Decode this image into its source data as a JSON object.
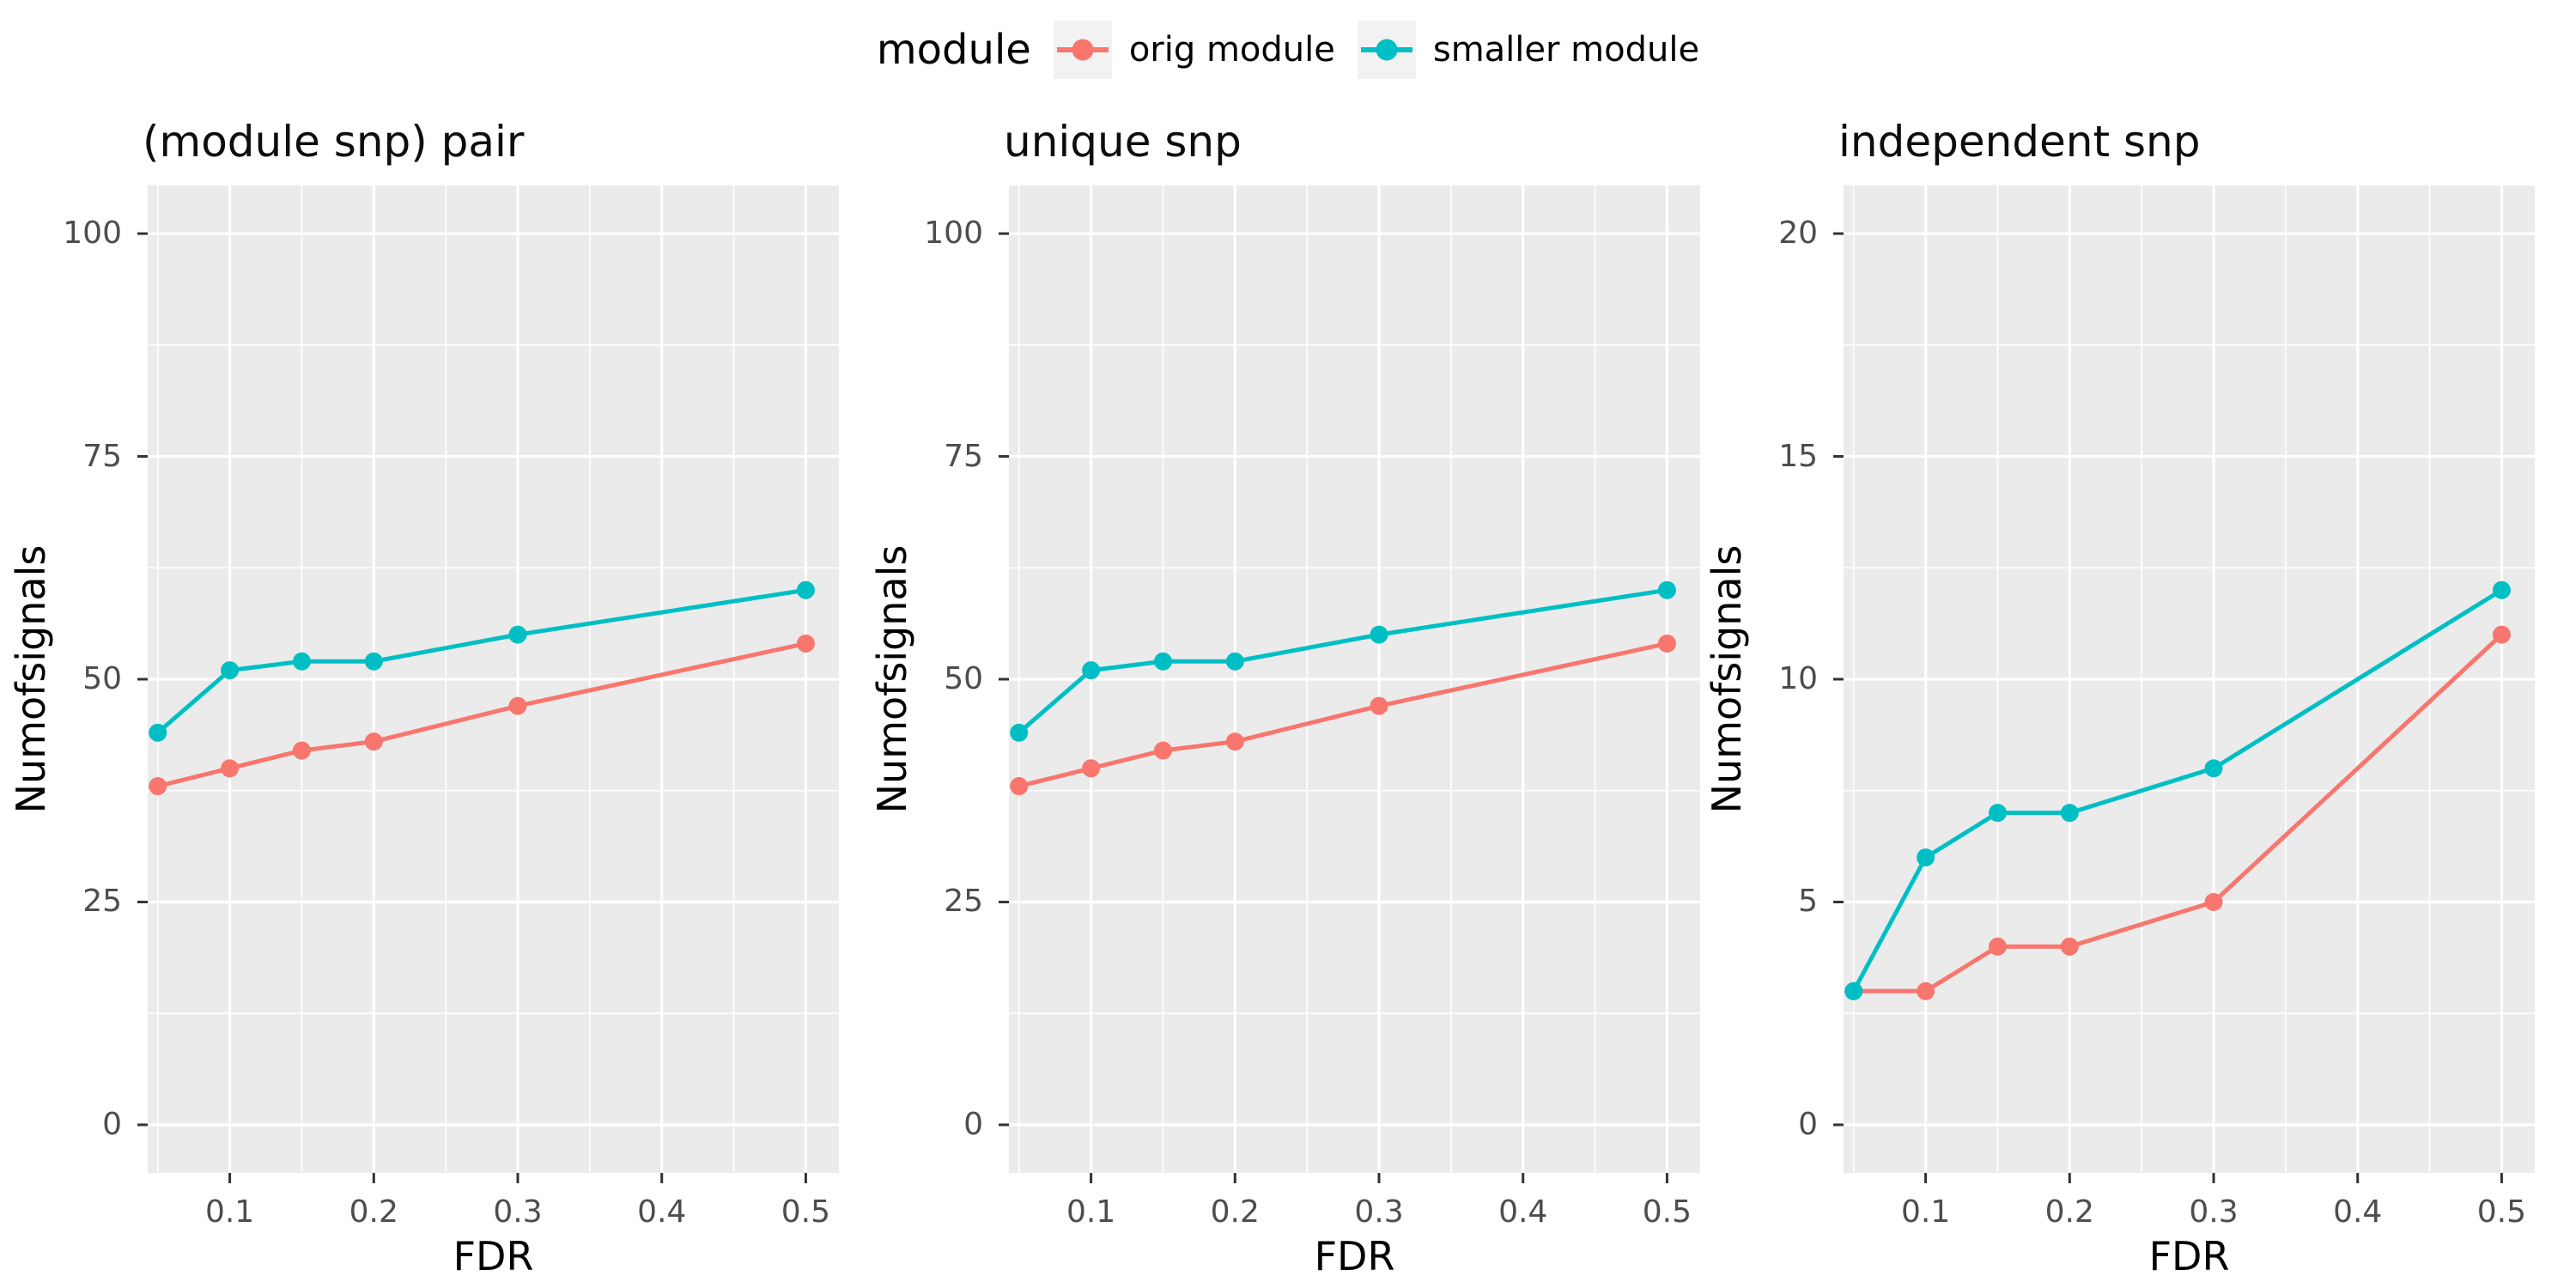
{
  "legend": {
    "title": "module",
    "position": "top",
    "items": [
      {
        "label": "orig module",
        "color": "#F8766D"
      },
      {
        "label": "smaller module",
        "color": "#00BFC4"
      }
    ]
  },
  "colors": {
    "panel_bg": "#EBEBEB",
    "grid": "#FFFFFF",
    "tick_mark": "#333333",
    "tick_text": "#4D4D4D",
    "axis_title": "#000000",
    "legend_key_bg": "#F2F2F2",
    "orig_module": "#F8766D",
    "smaller_module": "#00BFC4"
  },
  "chart_data": [
    {
      "type": "line",
      "title": "(module snp) pair",
      "xlabel": "FDR",
      "ylabel": "Numofsignals",
      "grid": true,
      "legend_position": "top",
      "x": [
        0.05,
        0.1,
        0.15,
        0.2,
        0.3,
        0.5
      ],
      "series": [
        {
          "name": "orig module",
          "color": "#F8766D",
          "values": [
            38,
            40,
            42,
            43,
            47,
            54
          ]
        },
        {
          "name": "smaller module",
          "color": "#00BFC4",
          "values": [
            44,
            51,
            52,
            52,
            55,
            60
          ]
        }
      ],
      "xlim": [
        0.043,
        0.523
      ],
      "ylim": [
        -5.4,
        105.4
      ],
      "x_major_ticks": [
        0.1,
        0.2,
        0.3,
        0.4,
        0.5
      ],
      "x_tick_labels": [
        "0.1",
        "0.2",
        "0.3",
        "0.4",
        "0.5"
      ],
      "x_minor_gridlines": [
        0.05,
        0.15,
        0.25,
        0.35,
        0.45
      ],
      "y_major_ticks": [
        0,
        25,
        50,
        75,
        100
      ],
      "y_tick_labels": [
        "0",
        "25",
        "50",
        "75",
        "100"
      ],
      "y_minor_gridlines": [
        12.5,
        37.5,
        62.5,
        87.5
      ]
    },
    {
      "type": "line",
      "title": "unique snp",
      "xlabel": "FDR",
      "ylabel": "Numofsignals",
      "grid": true,
      "legend_position": "top",
      "x": [
        0.05,
        0.1,
        0.15,
        0.2,
        0.3,
        0.5
      ],
      "series": [
        {
          "name": "orig module",
          "color": "#F8766D",
          "values": [
            38,
            40,
            42,
            43,
            47,
            54
          ]
        },
        {
          "name": "smaller module",
          "color": "#00BFC4",
          "values": [
            44,
            51,
            52,
            52,
            55,
            60
          ]
        }
      ],
      "xlim": [
        0.043,
        0.523
      ],
      "ylim": [
        -5.4,
        105.4
      ],
      "x_major_ticks": [
        0.1,
        0.2,
        0.3,
        0.4,
        0.5
      ],
      "x_tick_labels": [
        "0.1",
        "0.2",
        "0.3",
        "0.4",
        "0.5"
      ],
      "x_minor_gridlines": [
        0.05,
        0.15,
        0.25,
        0.35,
        0.45
      ],
      "y_major_ticks": [
        0,
        25,
        50,
        75,
        100
      ],
      "y_tick_labels": [
        "0",
        "25",
        "50",
        "75",
        "100"
      ],
      "y_minor_gridlines": [
        12.5,
        37.5,
        62.5,
        87.5
      ]
    },
    {
      "type": "line",
      "title": "independent snp",
      "xlabel": "FDR",
      "ylabel": "Numofsignals",
      "grid": true,
      "legend_position": "top",
      "x": [
        0.05,
        0.1,
        0.15,
        0.2,
        0.3,
        0.5
      ],
      "series": [
        {
          "name": "orig module",
          "color": "#F8766D",
          "values": [
            3,
            3,
            4,
            4,
            5,
            11
          ]
        },
        {
          "name": "smaller module",
          "color": "#00BFC4",
          "values": [
            3,
            6,
            7,
            7,
            8,
            12
          ]
        }
      ],
      "xlim": [
        0.043,
        0.523
      ],
      "ylim": [
        -1.08,
        21.08
      ],
      "x_major_ticks": [
        0.1,
        0.2,
        0.3,
        0.4,
        0.5
      ],
      "x_tick_labels": [
        "0.1",
        "0.2",
        "0.3",
        "0.4",
        "0.5"
      ],
      "x_minor_gridlines": [
        0.05,
        0.15,
        0.25,
        0.35,
        0.45
      ],
      "y_major_ticks": [
        0,
        5,
        10,
        15,
        20
      ],
      "y_tick_labels": [
        "0",
        "5",
        "10",
        "15",
        "20"
      ],
      "y_minor_gridlines": [
        2.5,
        7.5,
        12.5,
        17.5
      ]
    }
  ]
}
